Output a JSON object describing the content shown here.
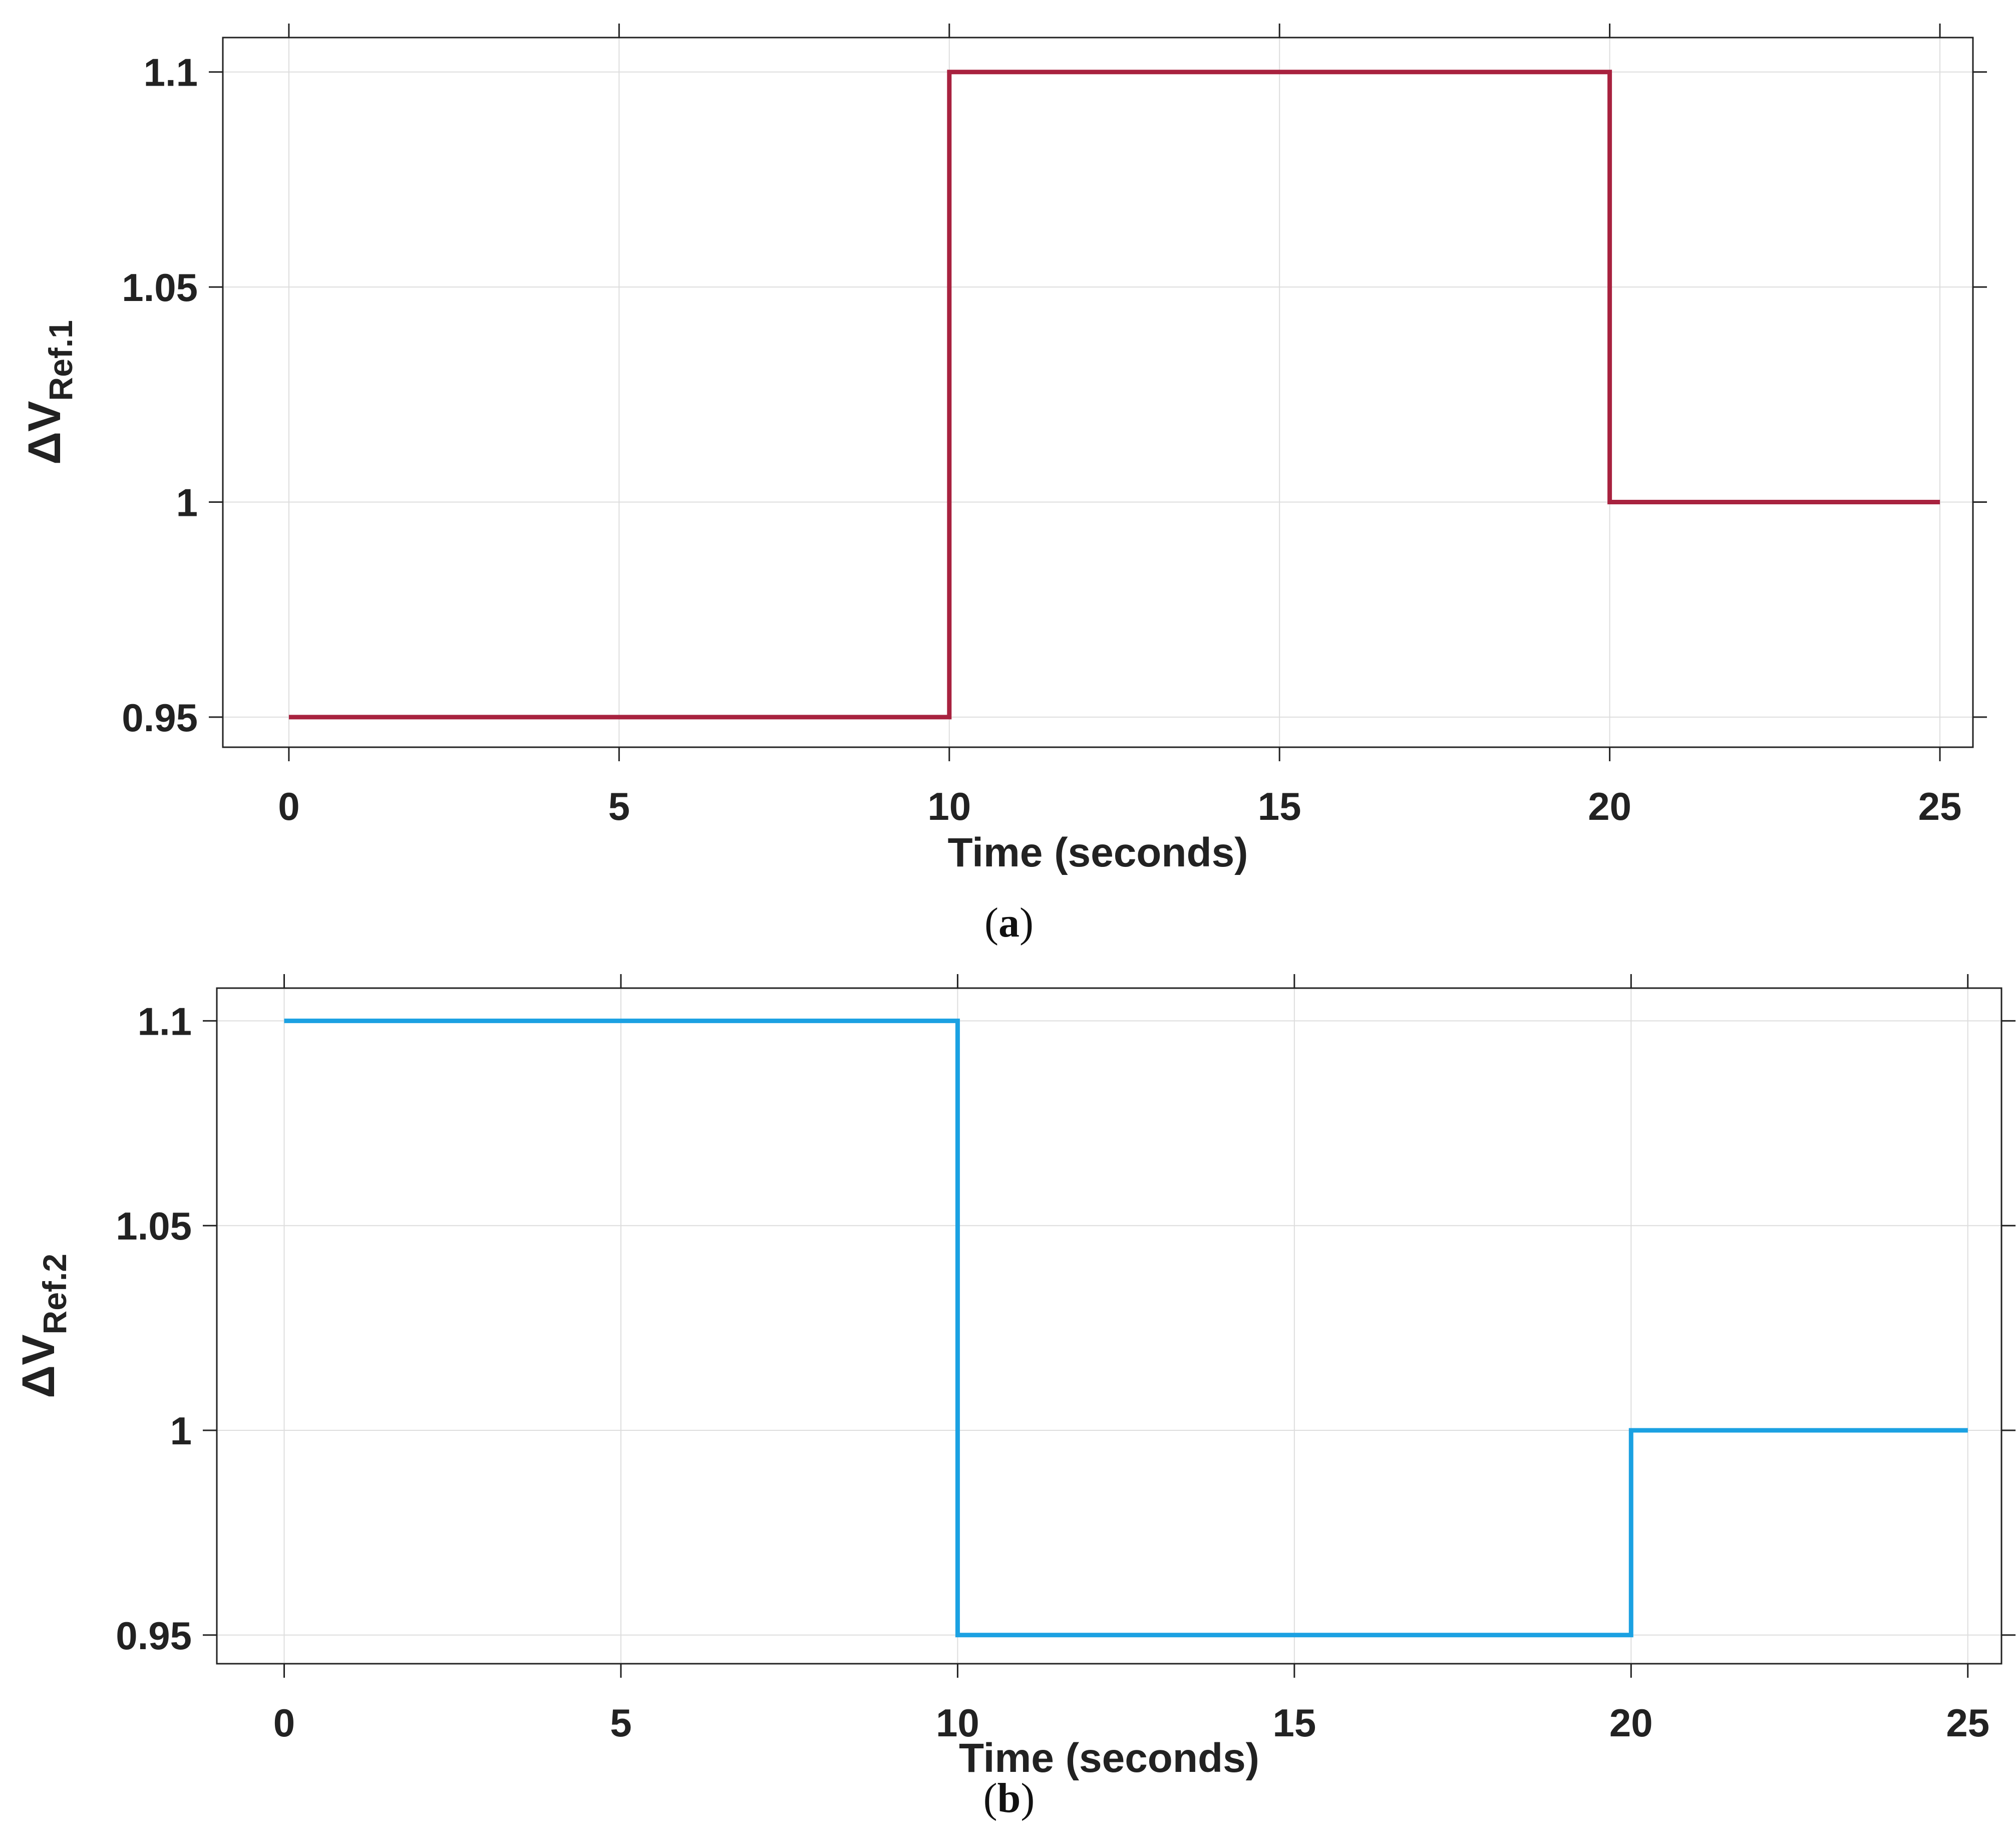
{
  "figure": {
    "panels": [
      {
        "caption_open": "(",
        "caption_letter": "a",
        "caption_close": ")",
        "ylabel_main": "ΔV",
        "ylabel_sub": "Ref.1"
      },
      {
        "caption_open": "(",
        "caption_letter": "b",
        "caption_close": ")",
        "ylabel_main": "ΔV",
        "ylabel_sub": "Ref.2"
      }
    ]
  },
  "chart_data": [
    {
      "type": "line",
      "step": true,
      "title": "",
      "xlabel": "Time (seconds)",
      "ylabel": "ΔV Ref.1",
      "xlim": [
        -1,
        25.5
      ],
      "ylim": [
        0.943,
        1.108
      ],
      "xticks": [
        0,
        5,
        10,
        15,
        20,
        25
      ],
      "xtick_labels": [
        "0",
        "5",
        "10",
        "15",
        "20",
        "25"
      ],
      "yticks": [
        0.95,
        1,
        1.05,
        1.1
      ],
      "ytick_labels": [
        "0.95",
        "1",
        "1.05",
        "1.1"
      ],
      "grid": true,
      "series": [
        {
          "color": "#a8223f",
          "x": [
            0,
            10,
            10,
            20,
            20,
            25
          ],
          "y": [
            0.95,
            0.95,
            1.1,
            1.1,
            1.0,
            1.0
          ]
        }
      ]
    },
    {
      "type": "line",
      "step": true,
      "title": "",
      "xlabel": "Time (seconds)",
      "ylabel": "ΔV Ref.2",
      "xlim": [
        -1,
        25.5
      ],
      "ylim": [
        0.943,
        1.108
      ],
      "xticks": [
        0,
        5,
        10,
        15,
        20,
        25
      ],
      "xtick_labels": [
        "0",
        "5",
        "10",
        "15",
        "20",
        "25"
      ],
      "yticks": [
        0.95,
        1,
        1.05,
        1.1
      ],
      "ytick_labels": [
        "0.95",
        "1",
        "1.05",
        "1.1"
      ],
      "grid": true,
      "series": [
        {
          "color": "#1ba1e2",
          "x": [
            0,
            10,
            10,
            20,
            20,
            25
          ],
          "y": [
            1.1,
            1.1,
            0.95,
            0.95,
            1.0,
            1.0
          ]
        }
      ]
    }
  ]
}
